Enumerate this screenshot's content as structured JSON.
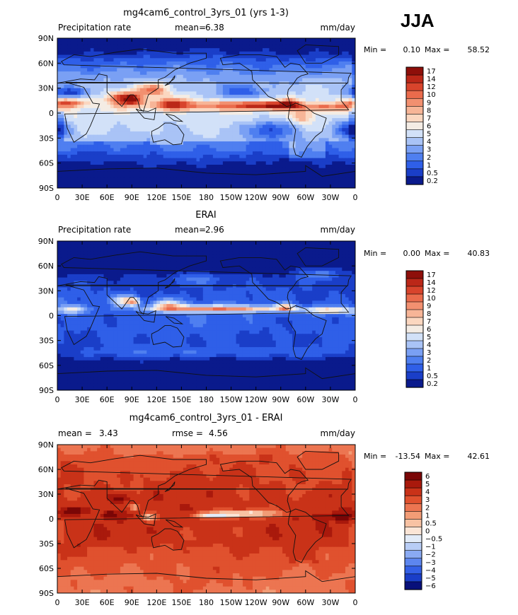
{
  "season": "JJA",
  "palette": {
    "precip": [
      "#0a1a8c",
      "#1a3ec8",
      "#2f5fe8",
      "#4f7ff0",
      "#7aa0f4",
      "#a9c3f6",
      "#d2e1f8",
      "#f4ece4",
      "#fbd7c0",
      "#f7b597",
      "#f29070",
      "#ea6b4c",
      "#d8442c",
      "#bb2718",
      "#8e0f0a"
    ],
    "diff": [
      "#08107a",
      "#1a3ec8",
      "#3460e6",
      "#5d86ef",
      "#8aaaf3",
      "#b8cdf6",
      "#e2ebf8",
      "#fbe5d6",
      "#f8c2a3",
      "#f29c76",
      "#ec7551",
      "#e0512e",
      "#c93218",
      "#a9190c",
      "#7a0606"
    ]
  },
  "chart_data": [
    {
      "type": "heatmap",
      "title": "mg4cam6_control_3yrs_01 (yrs 1-3)",
      "left_label": "Precipitation rate",
      "stat1_label": "mean=",
      "stat1_value": "6.38",
      "stat2_label": "",
      "stat2_value": "",
      "units": "mm/day",
      "min_label": "Min =",
      "min_value": "0.10",
      "max_label": "Max =",
      "max_value": "58.52",
      "xticks": [
        "0",
        "30E",
        "60E",
        "90E",
        "120E",
        "150E",
        "180",
        "150W",
        "120W",
        "90W",
        "60W",
        "30W",
        "0"
      ],
      "yticks": [
        "90N",
        "60N",
        "30N",
        "0",
        "30S",
        "60S",
        "90S"
      ],
      "xlim": [
        0,
        360
      ],
      "ylim": [
        -90,
        90
      ],
      "colorbar_labels": [
        "17",
        "14",
        "12",
        "10",
        "9",
        "8",
        "7",
        "6",
        "5",
        "4",
        "3",
        "2",
        "1",
        "0.5",
        "0.2"
      ],
      "palette": "precip",
      "field": {
        "base": 0.22,
        "polar": -0.35,
        "subtropic": 0.1,
        "land_offset": 0.12,
        "features": [
          {
            "name": "Pacific ITCZ",
            "lon": 185,
            "lat": 9,
            "wlon": 90,
            "wlat": 6,
            "amp": 0.3
          },
          {
            "name": "East Pacific ITCZ",
            "lon": 255,
            "lat": 9,
            "wlon": 35,
            "wlat": 5,
            "amp": 0.35
          },
          {
            "name": "Atlantic ITCZ",
            "lon": 325,
            "lat": 7,
            "wlon": 35,
            "wlat": 5,
            "amp": 0.28
          },
          {
            "name": "Indian Monsoon",
            "lon": 80,
            "lat": 18,
            "wlon": 18,
            "wlat": 8,
            "amp": 0.45
          },
          {
            "name": "Bay of Bengal",
            "lon": 92,
            "lat": 16,
            "wlon": 10,
            "wlat": 6,
            "amp": 0.3
          },
          {
            "name": "East Asia Monsoon",
            "lon": 115,
            "lat": 28,
            "wlon": 20,
            "wlat": 8,
            "amp": 0.35
          },
          {
            "name": "Sahel",
            "lon": 10,
            "lat": 12,
            "wlon": 25,
            "wlat": 5,
            "amp": 0.35
          },
          {
            "name": "Central America",
            "lon": 280,
            "lat": 12,
            "wlon": 12,
            "wlat": 6,
            "amp": 0.3
          },
          {
            "name": "Amazon",
            "lon": 295,
            "lat": -5,
            "wlon": 15,
            "wlat": 8,
            "amp": 0.2
          },
          {
            "name": "West Pacific",
            "lon": 140,
            "lat": 12,
            "wlon": 20,
            "wlat": 8,
            "amp": 0.3
          },
          {
            "name": "SE Pacific dry",
            "lon": 255,
            "lat": -20,
            "wlon": 30,
            "wlat": 12,
            "amp": -0.3
          },
          {
            "name": "SE Atlantic dry",
            "lon": 355,
            "lat": -20,
            "wlon": 20,
            "wlat": 10,
            "amp": -0.28
          },
          {
            "name": "Sahara dry",
            "lon": 15,
            "lat": 25,
            "wlon": 25,
            "wlat": 6,
            "amp": -0.28
          },
          {
            "name": "NE Pacific dry",
            "lon": 225,
            "lat": 25,
            "wlon": 30,
            "wlat": 8,
            "amp": -0.22
          }
        ]
      }
    },
    {
      "type": "heatmap",
      "title": "ERAI",
      "left_label": "Precipitation rate",
      "stat1_label": "mean=",
      "stat1_value": "2.96",
      "stat2_label": "",
      "stat2_value": "",
      "units": "mm/day",
      "min_label": "Min =",
      "min_value": "0.00",
      "max_label": "Max =",
      "max_value": "40.83",
      "xticks": [
        "0",
        "30E",
        "60E",
        "90E",
        "120E",
        "150E",
        "180",
        "150W",
        "120W",
        "90W",
        "60W",
        "30W",
        "0"
      ],
      "yticks": [
        "90N",
        "60N",
        "30N",
        "0",
        "30S",
        "60S",
        "90S"
      ],
      "xlim": [
        0,
        360
      ],
      "ylim": [
        -90,
        90
      ],
      "colorbar_labels": [
        "17",
        "14",
        "12",
        "10",
        "9",
        "8",
        "7",
        "6",
        "5",
        "4",
        "3",
        "2",
        "1",
        "0.5",
        "0.2"
      ],
      "palette": "precip",
      "field": {
        "base": 0.12,
        "polar": -0.4,
        "subtropic": 0.05,
        "land_offset": 0.0,
        "features": [
          {
            "name": "Pacific ITCZ",
            "lon": 200,
            "lat": 8,
            "wlon": 80,
            "wlat": 4,
            "amp": 0.55
          },
          {
            "name": "Atlantic ITCZ",
            "lon": 330,
            "lat": 6,
            "wlon": 30,
            "wlat": 4,
            "amp": 0.45
          },
          {
            "name": "Indian Monsoon",
            "lon": 80,
            "lat": 18,
            "wlon": 12,
            "wlat": 7,
            "amp": 0.4
          },
          {
            "name": "Bay of Bengal",
            "lon": 92,
            "lat": 17,
            "wlon": 8,
            "wlat": 5,
            "amp": 0.45
          },
          {
            "name": "Western Pacific",
            "lon": 135,
            "lat": 12,
            "wlon": 20,
            "wlat": 7,
            "amp": 0.4
          },
          {
            "name": "Central America",
            "lon": 275,
            "lat": 10,
            "wlon": 10,
            "wlat": 5,
            "amp": 0.4
          },
          {
            "name": "Equatorial Africa",
            "lon": 20,
            "lat": 8,
            "wlon": 15,
            "wlat": 5,
            "amp": 0.3
          },
          {
            "name": "North Atlantic storm",
            "lon": 320,
            "lat": 50,
            "wlon": 30,
            "wlat": 8,
            "amp": 0.18
          },
          {
            "name": "North Pacific storm",
            "lon": 170,
            "lat": 45,
            "wlon": 40,
            "wlat": 8,
            "amp": 0.15
          },
          {
            "name": "Southern storm",
            "lon": 180,
            "lat": -45,
            "wlon": 180,
            "wlat": 8,
            "amp": 0.12
          }
        ]
      }
    },
    {
      "type": "heatmap",
      "title": "mg4cam6_control_3yrs_01 - ERAI",
      "left_label": "",
      "stat1_label": "mean =",
      "stat1_value": "3.43",
      "stat2_label": "rmse =",
      "stat2_value": "4.56",
      "units": "mm/day",
      "min_label": "Min =",
      "min_value": "-13.54",
      "max_label": "Max =",
      "max_value": "42.61",
      "xticks": [
        "0",
        "30E",
        "60E",
        "90E",
        "120E",
        "150E",
        "180",
        "150W",
        "120W",
        "90W",
        "60W",
        "30W",
        "0"
      ],
      "yticks": [
        "90N",
        "60N",
        "30N",
        "0",
        "30S",
        "60S",
        "90S"
      ],
      "xlim": [
        0,
        360
      ],
      "ylim": [
        -90,
        90
      ],
      "colorbar_labels": [
        "6",
        "5",
        "4",
        "3",
        "2",
        "1",
        "0.5",
        "0",
        "−0.5",
        "−1",
        "−2",
        "−3",
        "−4",
        "−5",
        "−6"
      ],
      "palette": "diff",
      "field": {
        "base": 0.78,
        "polar": -0.06,
        "subtropic": 0.02,
        "land_offset": 0.04,
        "features": [
          {
            "name": "East Pacific dry bias",
            "lon": 225,
            "lat": 6,
            "wlon": 40,
            "wlat": 4,
            "amp": -0.4
          },
          {
            "name": "Central Pacific dry bias",
            "lon": 185,
            "lat": 4,
            "wlon": 20,
            "wlat": 3,
            "amp": -0.25
          },
          {
            "name": "Maritime Continent",
            "lon": 110,
            "lat": 2,
            "wlon": 10,
            "wlat": 5,
            "amp": -0.3
          },
          {
            "name": "Bay of Bengal",
            "lon": 93,
            "lat": 14,
            "wlon": 6,
            "wlat": 4,
            "amp": -0.3
          },
          {
            "name": "Western Indian Ocean",
            "lon": 62,
            "lat": 5,
            "wlon": 10,
            "wlat": 5,
            "amp": 0.18
          },
          {
            "name": "South Asia wet",
            "lon": 75,
            "lat": 25,
            "wlon": 10,
            "wlat": 5,
            "amp": 0.18
          },
          {
            "name": "Equatorial Atlantic",
            "lon": 340,
            "lat": 3,
            "wlon": 20,
            "wlat": 5,
            "amp": 0.14
          },
          {
            "name": "Africa",
            "lon": 20,
            "lat": 10,
            "wlon": 15,
            "wlat": 5,
            "amp": 0.16
          }
        ]
      }
    }
  ]
}
